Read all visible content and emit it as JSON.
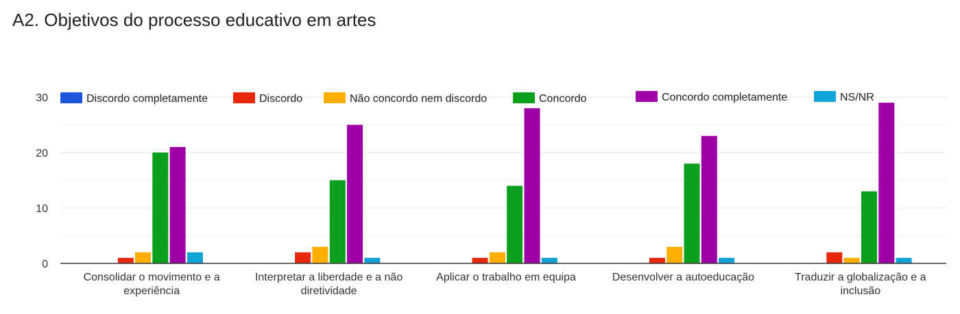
{
  "title": "A2. Objetivos do processo educativo em artes",
  "chart_data": {
    "type": "bar",
    "categories": [
      [
        "Consolidar o movimento e a",
        "experiência"
      ],
      [
        "Interpretar a liberdade e a não",
        "diretividade"
      ],
      [
        "Aplicar o trabalho em equipa"
      ],
      [
        "Desenvolver a autoeducação"
      ],
      [
        "Traduzir a globalização e a",
        "inclusão"
      ]
    ],
    "series": [
      {
        "name": "Discordo completamente",
        "color": "#1a56db",
        "values": [
          0,
          0,
          0,
          0,
          0
        ]
      },
      {
        "name": "Discordo",
        "color": "#e8270f",
        "values": [
          1,
          2,
          1,
          1,
          2
        ]
      },
      {
        "name": "Não concordo nem discordo",
        "color": "#ffae00",
        "values": [
          2,
          3,
          2,
          3,
          1
        ]
      },
      {
        "name": "Concordo",
        "color": "#0ca01e",
        "values": [
          20,
          15,
          14,
          18,
          13
        ]
      },
      {
        "name": "Concordo completamente",
        "color": "#a000a8",
        "values": [
          21,
          25,
          28,
          23,
          29
        ]
      },
      {
        "name": "NS/NR",
        "color": "#0fa3d8",
        "values": [
          2,
          1,
          1,
          1,
          1
        ]
      }
    ],
    "yticks": [
      0,
      10,
      20,
      30
    ],
    "ylim": [
      0,
      30
    ],
    "grid": true,
    "legend_position": "top"
  }
}
